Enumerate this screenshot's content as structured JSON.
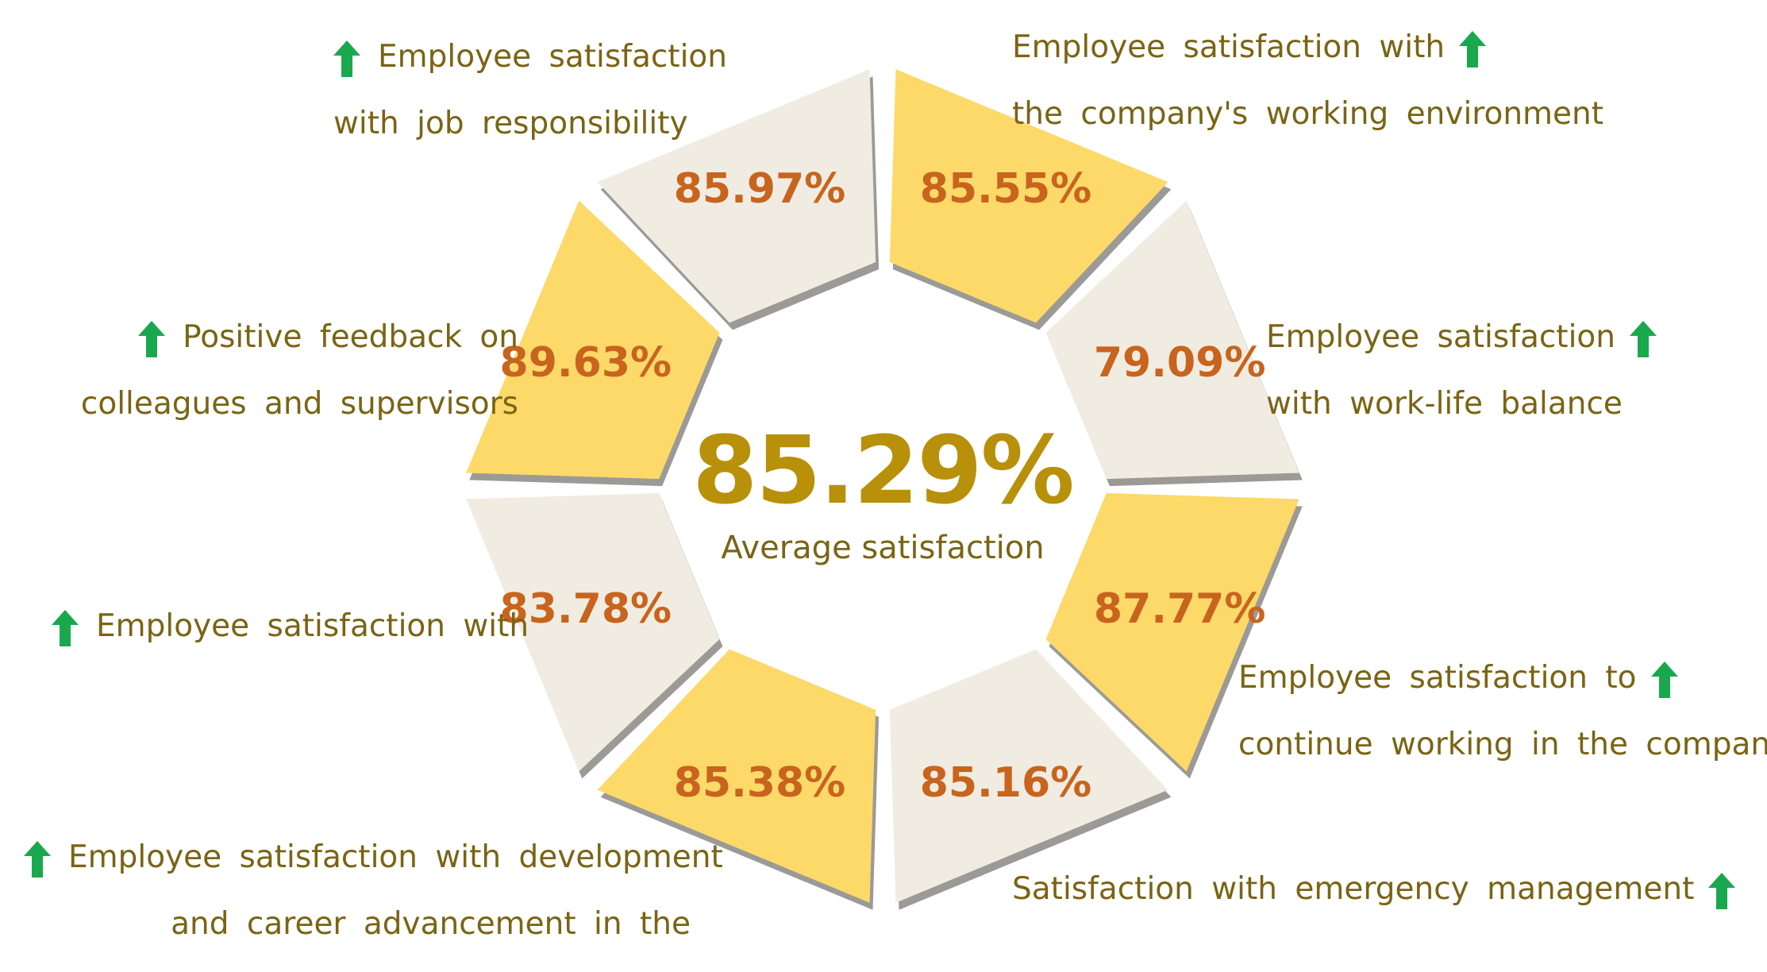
{
  "center": {
    "value": "85.29%",
    "label": "Average satisfaction"
  },
  "segments": [
    {
      "percent": "85.97%",
      "value": 85.97,
      "fill": "#f0ece2",
      "label_lines": [
        "Employee satisfaction",
        "with job responsibility"
      ],
      "trend_icon": "up-arrow-icon"
    },
    {
      "percent": "85.55%",
      "value": 85.55,
      "fill": "#fdd96a",
      "label_lines": [
        "Employee satisfaction with",
        "the company's working environment"
      ],
      "trend_icon": "up-arrow-icon"
    },
    {
      "percent": "79.09%",
      "value": 79.09,
      "fill": "#f0ece2",
      "label_lines": [
        "Employee satisfaction",
        "with work-life balance"
      ],
      "trend_icon": "up-arrow-icon"
    },
    {
      "percent": "87.77%",
      "value": 87.77,
      "fill": "#fdd96a",
      "label_lines": [
        "Employee satisfaction to",
        "continue working in the company"
      ],
      "trend_icon": "up-arrow-icon"
    },
    {
      "percent": "85.16%",
      "value": 85.16,
      "fill": "#f0ece2",
      "label_lines": [
        "Satisfaction with emergency management"
      ],
      "trend_icon": "up-arrow-icon"
    },
    {
      "percent": "85.38%",
      "value": 85.38,
      "fill": "#fdd96a",
      "label_lines": [
        "Employee satisfaction with development",
        "and career advancement in the"
      ],
      "trend_icon": "up-arrow-icon"
    },
    {
      "percent": "83.78%",
      "value": 83.78,
      "fill": "#f0ece2",
      "label_lines": [
        "Employee satisfaction with"
      ],
      "trend_icon": "up-arrow-icon"
    },
    {
      "percent": "89.63%",
      "value": 89.63,
      "fill": "#fdd96a",
      "label_lines": [
        "Positive feedback on",
        "colleagues and supervisors"
      ],
      "trend_icon": "up-arrow-icon"
    }
  ],
  "colors": {
    "label_text": "#7a6414",
    "percent_text": "#c8641e",
    "center_text": "#b8900a",
    "segment_light": "#f0ece2",
    "segment_yellow": "#fdd96a",
    "segment_shadow": "#9c9a96",
    "trend_up": "#1aa84e"
  }
}
